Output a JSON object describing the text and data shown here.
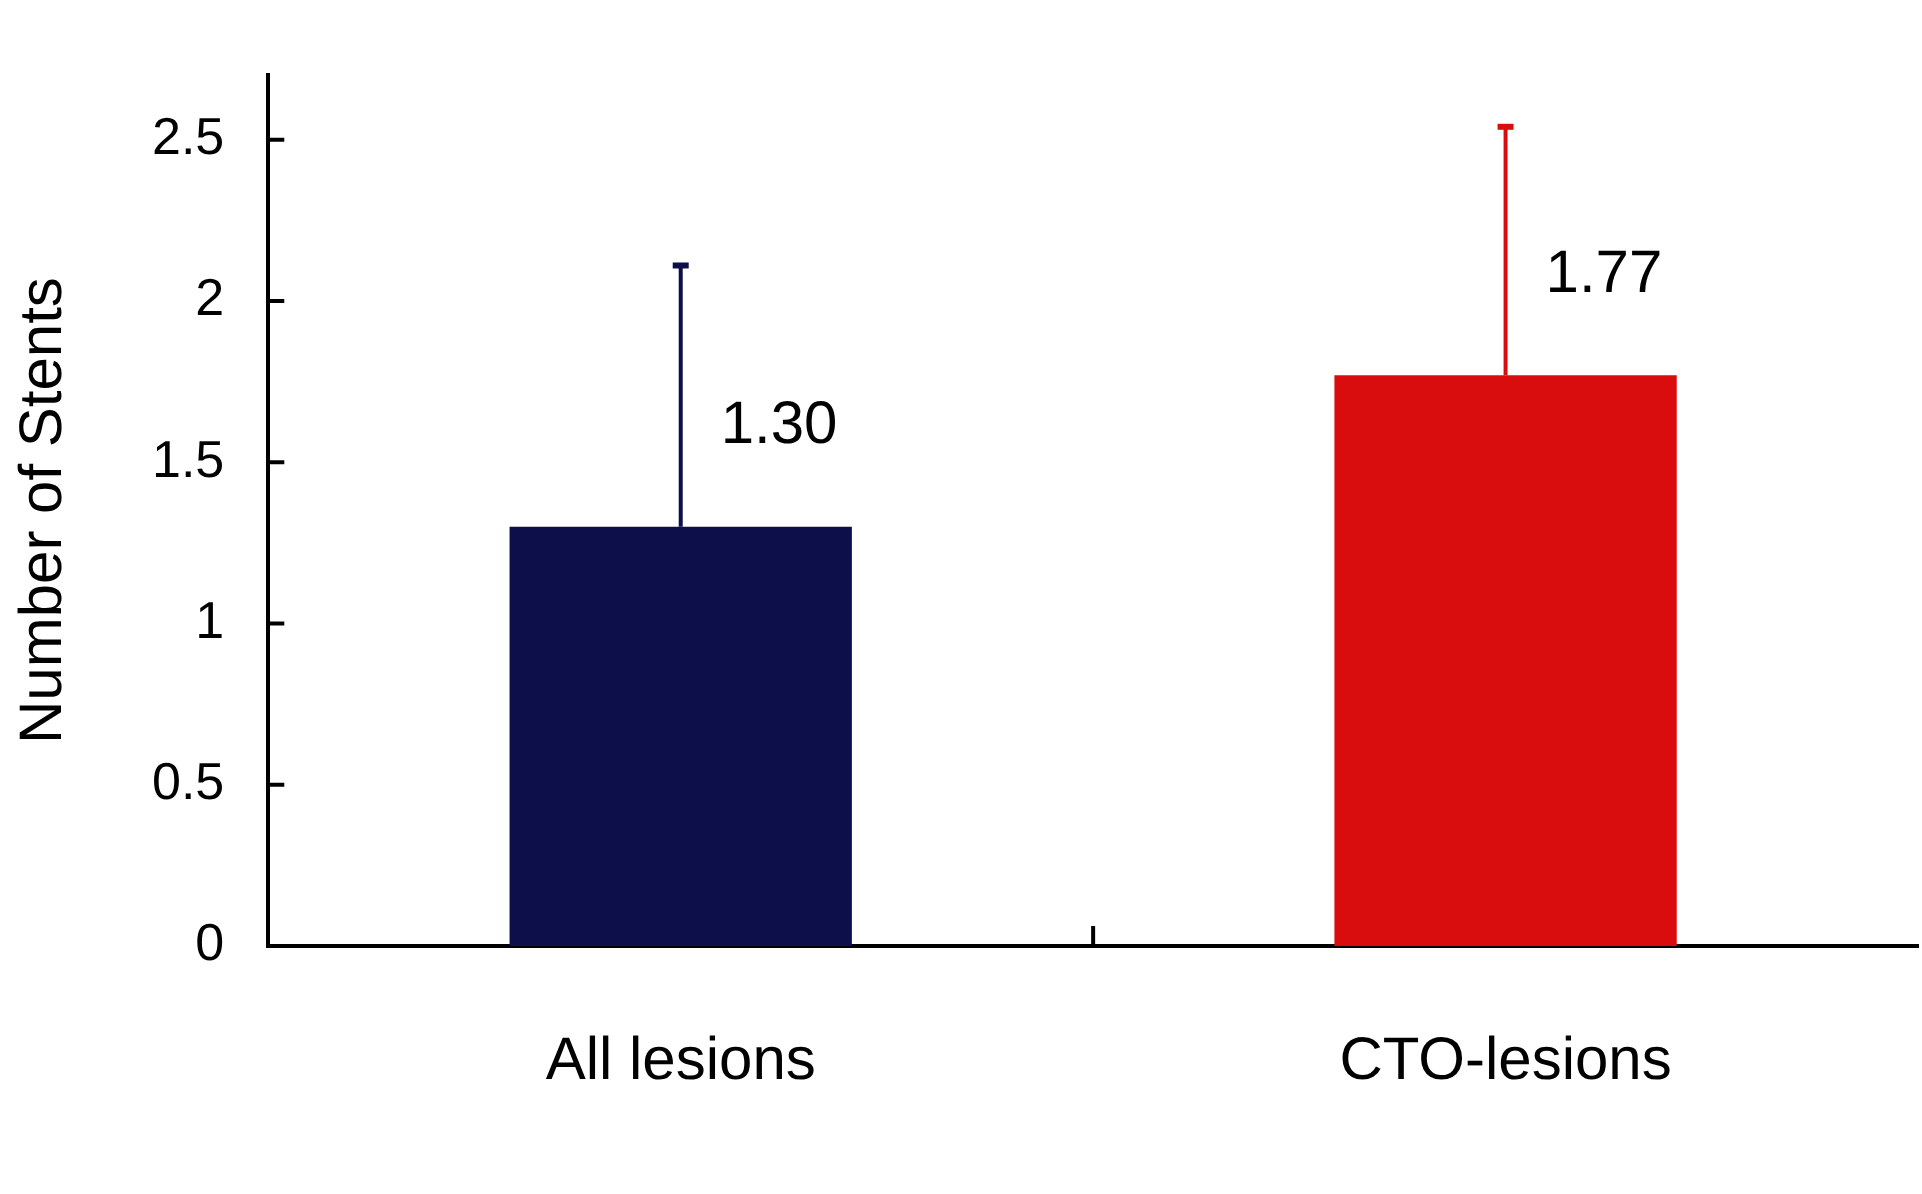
{
  "chart_data": {
    "type": "bar",
    "ylabel": "Number of Stents",
    "categories": [
      "All lesions",
      "CTO-lesions"
    ],
    "values": [
      1.3,
      1.77
    ],
    "colors": [
      "#0d0f4a",
      "#d90d0d"
    ],
    "errors": [
      [
        1.3,
        2.11
      ],
      [
        1.77,
        2.54
      ]
    ],
    "value_labels": [
      "1.30",
      "1.77"
    ],
    "ylim": [
      0,
      2.7
    ],
    "yticks": [
      0,
      0.5,
      1,
      1.5,
      2,
      2.5
    ],
    "grid": false,
    "legend": false
  }
}
